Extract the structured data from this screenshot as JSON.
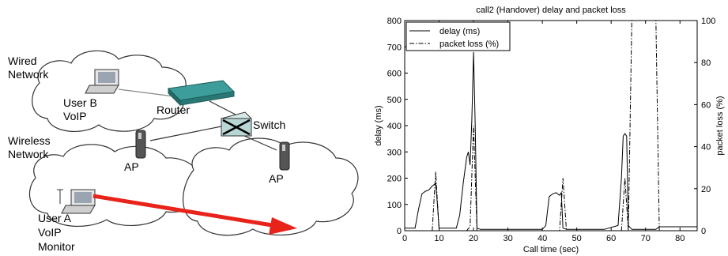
{
  "diagram": {
    "labels": {
      "wired_network_line1": "Wired",
      "wired_network_line2": "Network",
      "user_b_line1": "User B",
      "user_b_line2": "VoIP",
      "router": "Router",
      "switch": "Switch",
      "wireless_network_line1": "Wireless",
      "wireless_network_line2": "Network",
      "ap_left": "AP",
      "ap_right": "AP",
      "user_a_line1": "User A",
      "user_a_line2": "VoIP",
      "user_a_line3": "Monitor"
    },
    "colors": {
      "arrow": "#e8231a",
      "router": "#2f8f8f",
      "switch": "#b9d6d6",
      "cloud_stroke": "#333333"
    },
    "icons": [
      "cloud-icon",
      "laptop-icon",
      "router-icon",
      "switch-icon",
      "access-point-icon",
      "arrow-icon"
    ]
  },
  "chart_data": {
    "type": "line",
    "title": "call2 (Handover) delay and packet loss",
    "xlabel": "Call time (sec)",
    "ylabel": "delay (ms)",
    "y2label": "packet loss (%)",
    "xlim": [
      0,
      85
    ],
    "ylim": [
      0,
      800
    ],
    "y2lim": [
      0,
      100
    ],
    "xticks": [
      0,
      10,
      20,
      30,
      40,
      50,
      60,
      70,
      80
    ],
    "yticks": [
      0,
      100,
      200,
      300,
      400,
      500,
      600,
      700,
      800
    ],
    "y2ticks": [
      0,
      20,
      40,
      60,
      80,
      100
    ],
    "legend_placement": "top-left",
    "series": [
      {
        "name": "delay (ms)",
        "axis": "left",
        "style": "solid",
        "x": [
          0,
          3,
          4,
          5,
          6,
          7,
          8,
          9,
          9.5,
          10,
          15,
          16,
          17,
          18,
          18.5,
          19,
          19.5,
          20,
          20.5,
          21,
          22,
          40,
          41,
          42,
          43,
          44,
          45,
          45.5,
          46,
          47,
          58,
          62,
          63,
          63.5,
          64,
          64.5,
          65,
          66,
          73,
          74,
          85
        ],
        "y": [
          10,
          10,
          80,
          140,
          150,
          155,
          170,
          180,
          100,
          10,
          10,
          60,
          180,
          280,
          300,
          250,
          420,
          680,
          400,
          10,
          5,
          5,
          20,
          130,
          140,
          145,
          135,
          145,
          10,
          5,
          5,
          20,
          200,
          360,
          370,
          360,
          20,
          5,
          5,
          15,
          15
        ]
      },
      {
        "name": "packet loss (%)",
        "axis": "right",
        "style": "dashdot",
        "x": [
          0,
          8,
          9,
          10,
          17,
          18,
          19,
          20,
          21,
          45,
          46,
          47,
          63,
          64,
          65,
          66,
          73,
          74,
          85
        ],
        "y": [
          0,
          0,
          28,
          0,
          0,
          0,
          2,
          50,
          0,
          0,
          25,
          0,
          0,
          25,
          0,
          100,
          100,
          0,
          0
        ]
      }
    ]
  }
}
